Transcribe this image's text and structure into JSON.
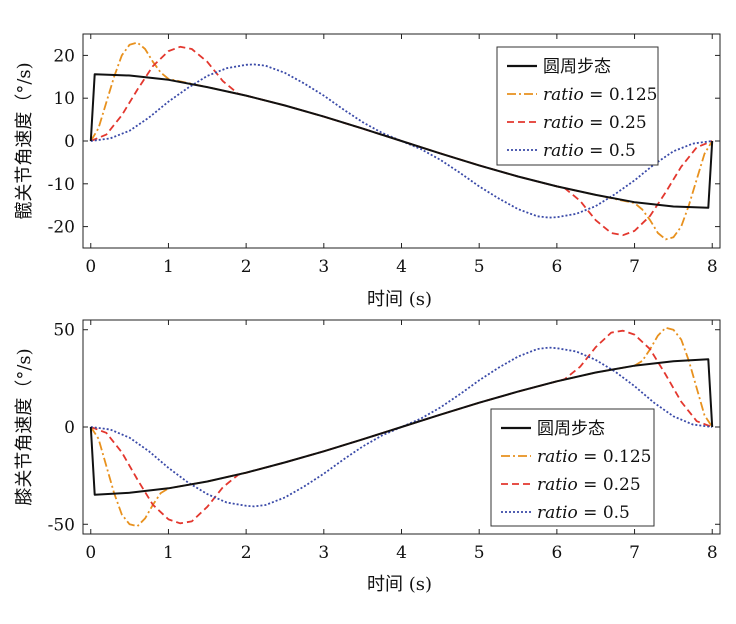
{
  "chart_data": [
    {
      "type": "line",
      "xlabel": "时间 (s)",
      "ylabel": "髋关节角速度（°/s)",
      "xlim": [
        -0.1,
        8.1
      ],
      "ylim": [
        -25,
        25
      ],
      "xticks": [
        "0",
        "1",
        "2",
        "3",
        "4",
        "5",
        "6",
        "7",
        "8"
      ],
      "yticks": [
        "-20",
        "-10",
        "0",
        "10",
        "20"
      ],
      "legend_position": "top-right",
      "series": [
        {
          "name": "圆周步态",
          "name_ratio": "",
          "name_value": "",
          "color": "#111111",
          "dash": "solid",
          "x": [
            0,
            0.05,
            0.5,
            1,
            1.5,
            2,
            2.5,
            3,
            3.5,
            4,
            4.5,
            5,
            5.5,
            6,
            6.5,
            7,
            7.5,
            7.95,
            8
          ],
          "y": [
            0,
            15.6,
            15.3,
            14.3,
            12.6,
            10.6,
            8.3,
            5.7,
            2.9,
            0,
            -2.9,
            -5.7,
            -8.3,
            -10.6,
            -12.6,
            -14.3,
            -15.3,
            -15.6,
            0
          ]
        },
        {
          "name": "",
          "name_ratio": "ratio",
          "name_value": " = 0.125",
          "color": "#e8911e",
          "dash": "9 3 2 3",
          "x": [
            0,
            0.1,
            0.2,
            0.3,
            0.4,
            0.5,
            0.6,
            0.7,
            0.8,
            0.9,
            1,
            1.5,
            2,
            2.5,
            3,
            3.5,
            4,
            4.5,
            5,
            5.5,
            6,
            6.5,
            7,
            7.1,
            7.2,
            7.3,
            7.4,
            7.5,
            7.6,
            7.7,
            7.8,
            7.9,
            8
          ],
          "y": [
            0,
            3,
            9,
            15,
            20,
            22.5,
            23,
            21.5,
            18.5,
            16,
            14.5,
            12.6,
            10.6,
            8.3,
            5.7,
            2.9,
            0,
            -2.9,
            -5.7,
            -8.3,
            -10.6,
            -12.6,
            -14.5,
            -16,
            -18.5,
            -21.5,
            -23,
            -22.5,
            -20,
            -15,
            -9,
            -3,
            0
          ]
        },
        {
          "name": "",
          "name_ratio": "ratio",
          "name_value": " = 0.25",
          "color": "#e3372e",
          "dash": "7 4",
          "x": [
            0,
            0.2,
            0.4,
            0.6,
            0.8,
            1,
            1.15,
            1.3,
            1.5,
            1.7,
            1.9,
            2,
            2.5,
            3,
            3.5,
            4,
            4.5,
            5,
            5.5,
            6,
            6.1,
            6.3,
            6.5,
            6.7,
            6.85,
            7,
            7.2,
            7.4,
            7.6,
            7.8,
            8
          ],
          "y": [
            0,
            1.5,
            6,
            12,
            17.5,
            21,
            22,
            21.5,
            18.5,
            14,
            11,
            10.6,
            8.3,
            5.7,
            2.9,
            0,
            -2.9,
            -5.7,
            -8.3,
            -10.6,
            -11,
            -14,
            -18.5,
            -21.5,
            -22,
            -21,
            -17.5,
            -12,
            -6,
            -1.5,
            0
          ]
        },
        {
          "name": "",
          "name_ratio": "ratio",
          "name_value": " = 0.5",
          "color": "#3a4aa8",
          "dash": "2 2",
          "x": [
            0,
            0.25,
            0.5,
            0.75,
            1,
            1.25,
            1.5,
            1.75,
            2,
            2.1,
            2.25,
            2.5,
            2.75,
            3,
            3.25,
            3.5,
            3.75,
            4,
            4.25,
            4.5,
            4.75,
            5,
            5.25,
            5.5,
            5.75,
            5.9,
            6,
            6.25,
            6.5,
            6.75,
            7,
            7.25,
            7.5,
            7.75,
            8
          ],
          "y": [
            0,
            0.6,
            2.4,
            5.5,
            9.2,
            12.4,
            15.2,
            17.0,
            17.8,
            17.9,
            17.6,
            15.9,
            13.4,
            10.6,
            7.4,
            4.4,
            1.9,
            0,
            -1.9,
            -4.4,
            -7.4,
            -10.6,
            -13.4,
            -15.9,
            -17.6,
            -17.9,
            -17.8,
            -17.0,
            -15.2,
            -12.4,
            -9.2,
            -5.5,
            -2.4,
            -0.6,
            0
          ]
        }
      ]
    },
    {
      "type": "line",
      "xlabel": "时间 (s)",
      "ylabel": "膝关节角速度（°/s)",
      "xlim": [
        -0.1,
        8.1
      ],
      "ylim": [
        -55,
        55
      ],
      "xticks": [
        "0",
        "1",
        "2",
        "3",
        "4",
        "5",
        "6",
        "7",
        "8"
      ],
      "yticks": [
        "-50",
        "0",
        "50"
      ],
      "legend_position": "bottom-right",
      "series": [
        {
          "name": "圆周步态",
          "name_ratio": "",
          "name_value": "",
          "color": "#111111",
          "dash": "solid",
          "x": [
            0,
            0.05,
            0.5,
            1,
            1.5,
            2,
            2.5,
            3,
            3.5,
            4,
            4.5,
            5,
            5.5,
            6,
            6.5,
            7,
            7.5,
            7.95,
            8
          ],
          "y": [
            0,
            -34.8,
            -33.8,
            -31.5,
            -28,
            -23.5,
            -18.2,
            -12.5,
            -6.3,
            0,
            6.3,
            12.5,
            18.2,
            23.5,
            28,
            31.5,
            33.8,
            34.8,
            0
          ]
        },
        {
          "name": "",
          "name_ratio": "ratio",
          "name_value": " = 0.125",
          "color": "#e8911e",
          "dash": "9 3 2 3",
          "x": [
            0,
            0.1,
            0.2,
            0.3,
            0.4,
            0.5,
            0.6,
            0.7,
            0.8,
            0.9,
            1,
            1.5,
            2,
            2.5,
            3,
            3.5,
            4,
            4.5,
            5,
            5.5,
            6,
            6.5,
            7,
            7.1,
            7.2,
            7.3,
            7.4,
            7.5,
            7.6,
            7.7,
            7.8,
            7.9,
            8
          ],
          "y": [
            0,
            -6,
            -20,
            -34,
            -45,
            -50,
            -51,
            -47,
            -40,
            -34,
            -31.5,
            -28,
            -23.5,
            -18.2,
            -12.5,
            -6.3,
            0,
            6.3,
            12.5,
            18.2,
            23.5,
            28,
            31.5,
            34,
            40,
            47,
            51,
            50,
            45,
            34,
            20,
            6,
            0
          ]
        },
        {
          "name": "",
          "name_ratio": "ratio",
          "name_value": " = 0.25",
          "color": "#e3372e",
          "dash": "7 4",
          "x": [
            0,
            0.2,
            0.4,
            0.6,
            0.8,
            1,
            1.15,
            1.3,
            1.5,
            1.7,
            1.9,
            2,
            2.5,
            3,
            3.5,
            4,
            4.5,
            5,
            5.5,
            6,
            6.1,
            6.3,
            6.5,
            6.7,
            6.85,
            7,
            7.2,
            7.4,
            7.6,
            7.8,
            8
          ],
          "y": [
            0,
            -3,
            -13,
            -27,
            -40,
            -47.5,
            -49.5,
            -48.5,
            -41,
            -31,
            -24.5,
            -23.5,
            -18.2,
            -12.5,
            -6.3,
            0,
            6.3,
            12.5,
            18.2,
            23.5,
            24.5,
            31,
            41,
            48.5,
            49.5,
            47.5,
            40,
            27,
            13,
            3,
            0
          ]
        },
        {
          "name": "",
          "name_ratio": "ratio",
          "name_value": " = 0.5",
          "color": "#3a4aa8",
          "dash": "2 2",
          "x": [
            0,
            0.25,
            0.5,
            0.75,
            1,
            1.25,
            1.5,
            1.75,
            2,
            2.1,
            2.25,
            2.5,
            2.75,
            3,
            3.25,
            3.5,
            3.75,
            4,
            4.25,
            4.5,
            4.75,
            5,
            5.25,
            5.5,
            5.75,
            5.9,
            6,
            6.25,
            6.5,
            6.75,
            7,
            7.25,
            7.5,
            7.75,
            8
          ],
          "y": [
            0,
            -1.3,
            -5.5,
            -12.5,
            -21,
            -28.5,
            -34.5,
            -38.8,
            -40.5,
            -40.8,
            -40.1,
            -36.2,
            -30.5,
            -24,
            -16.8,
            -10,
            -4.3,
            0,
            4.3,
            10,
            16.8,
            24,
            30.5,
            36.2,
            40.1,
            40.8,
            40.5,
            38.8,
            34.5,
            28.5,
            21,
            12.5,
            5.5,
            1.3,
            0
          ]
        }
      ]
    }
  ]
}
